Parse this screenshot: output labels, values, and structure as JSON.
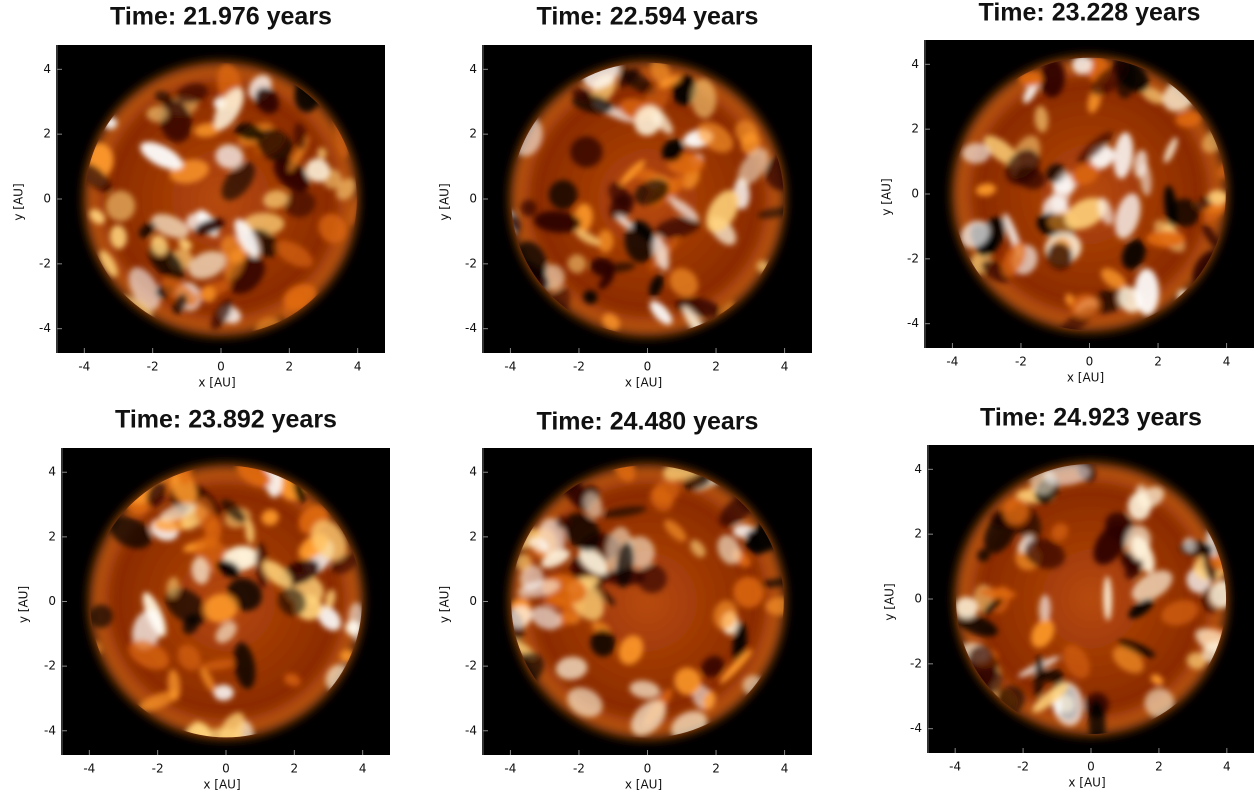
{
  "chart_data": [
    {
      "type": "image",
      "title": "Time: 21.976 years",
      "xlabel": "x [AU]",
      "ylabel": "y [AU]",
      "xlim": [
        -4.8,
        4.8
      ],
      "ylim": [
        -4.75,
        4.75
      ],
      "xticks": [
        -4,
        -2,
        0,
        2,
        4
      ],
      "yticks": [
        -4,
        -2,
        0,
        2,
        4
      ]
    },
    {
      "type": "image",
      "title": "Time: 22.594 years",
      "xlabel": "x [AU]",
      "ylabel": "y [AU]",
      "xlim": [
        -4.8,
        4.8
      ],
      "ylim": [
        -4.75,
        4.75
      ],
      "xticks": [
        -4,
        -2,
        0,
        2,
        4
      ],
      "yticks": [
        -4,
        -2,
        0,
        2,
        4
      ]
    },
    {
      "type": "image",
      "title": "Time: 23.228 years",
      "xlabel": "x [AU]",
      "ylabel": "y [AU]",
      "xlim": [
        -4.8,
        4.8
      ],
      "ylim": [
        -4.75,
        4.75
      ],
      "xticks": [
        -4,
        -2,
        0,
        2,
        4
      ],
      "yticks": [
        -4,
        -2,
        0,
        2,
        4
      ]
    },
    {
      "type": "image",
      "title": "Time: 23.892 years",
      "xlabel": "x [AU]",
      "ylabel": "y [AU]",
      "xlim": [
        -4.8,
        4.8
      ],
      "ylim": [
        -4.75,
        4.75
      ],
      "xticks": [
        -4,
        -2,
        0,
        2,
        4
      ],
      "yticks": [
        -4,
        -2,
        0,
        2,
        4
      ]
    },
    {
      "type": "image",
      "title": "Time: 24.480 years",
      "xlabel": "x [AU]",
      "ylabel": "y [AU]",
      "xlim": [
        -4.8,
        4.8
      ],
      "ylim": [
        -4.75,
        4.75
      ],
      "xticks": [
        -4,
        -2,
        0,
        2,
        4
      ],
      "yticks": [
        -4,
        -2,
        0,
        2,
        4
      ]
    },
    {
      "type": "image",
      "title": "Time: 24.923 years",
      "xlabel": "x [AU]",
      "ylabel": "y [AU]",
      "xlim": [
        -4.8,
        4.8
      ],
      "ylim": [
        -4.75,
        4.75
      ],
      "xticks": [
        -4,
        -2,
        0,
        2,
        4
      ],
      "yticks": [
        -4,
        -2,
        0,
        2,
        4
      ]
    }
  ]
}
